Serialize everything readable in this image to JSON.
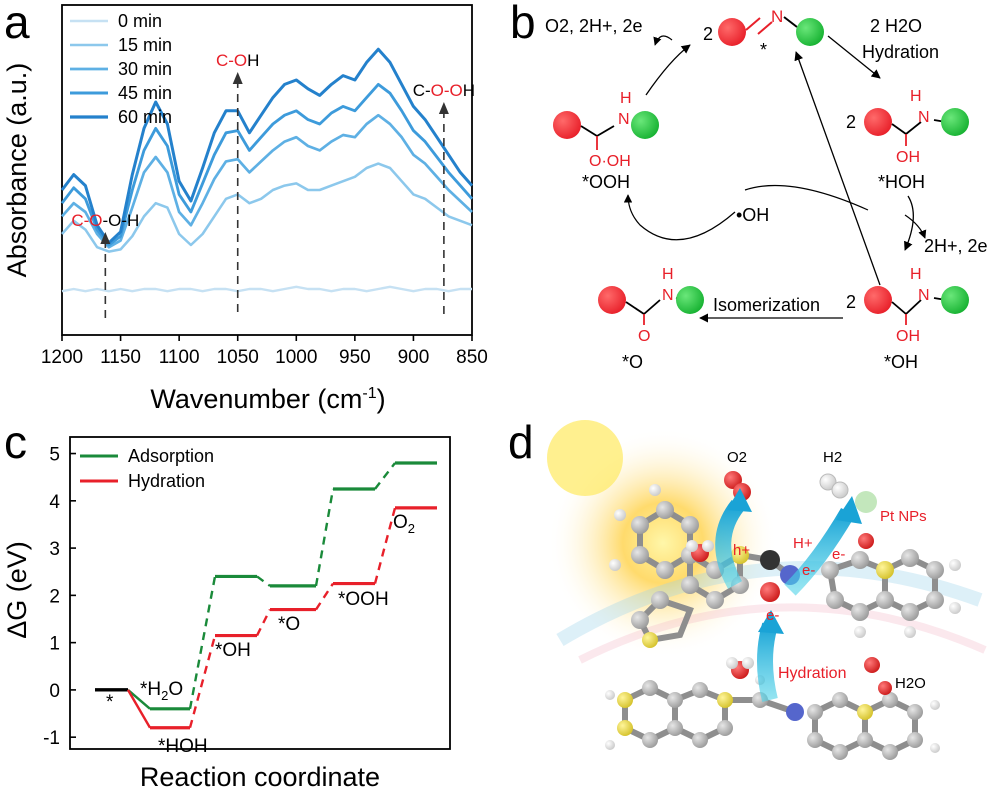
{
  "panels": {
    "a": "a",
    "b": "b",
    "c": "c",
    "d": "d"
  },
  "chart_data": [
    {
      "type": "line",
      "panel": "a",
      "xlabel": "Wavenumber (cm-1)",
      "xlabel_main": "Wavenumber (cm",
      "xlabel_sup": "-1",
      "xlabel_end": ")",
      "ylabel": "Absorbance (a.u.)",
      "xlim": [
        1200,
        850
      ],
      "x_reversed": true,
      "xticks": [
        1200,
        1150,
        1100,
        1050,
        1000,
        950,
        900,
        850
      ],
      "y_ticks_shown": false,
      "x": [
        1200,
        1190,
        1180,
        1170,
        1160,
        1150,
        1140,
        1130,
        1120,
        1110,
        1100,
        1090,
        1080,
        1070,
        1060,
        1050,
        1040,
        1030,
        1020,
        1010,
        1000,
        990,
        980,
        970,
        960,
        950,
        940,
        930,
        920,
        910,
        900,
        890,
        880,
        870,
        860,
        850
      ],
      "series": [
        {
          "name": "0 min",
          "color": "#c6e1f3",
          "values": [
            0.04,
            0.05,
            0.04,
            0.05,
            0.04,
            0.05,
            0.04,
            0.05,
            0.05,
            0.04,
            0.05,
            0.05,
            0.04,
            0.05,
            0.05,
            0.04,
            0.05,
            0.05,
            0.04,
            0.05,
            0.06,
            0.05,
            0.05,
            0.04,
            0.05,
            0.05,
            0.04,
            0.05,
            0.06,
            0.05,
            0.04,
            0.05,
            0.05,
            0.04,
            0.05,
            0.05
          ]
        },
        {
          "name": "15 min",
          "color": "#8cc8ec",
          "values": [
            0.3,
            0.36,
            0.32,
            0.24,
            0.22,
            0.23,
            0.29,
            0.38,
            0.44,
            0.42,
            0.3,
            0.25,
            0.3,
            0.38,
            0.46,
            0.48,
            0.44,
            0.46,
            0.5,
            0.52,
            0.53,
            0.5,
            0.5,
            0.52,
            0.54,
            0.56,
            0.6,
            0.62,
            0.6,
            0.54,
            0.48,
            0.46,
            0.42,
            0.38,
            0.36,
            0.34
          ]
        },
        {
          "name": "30 min",
          "color": "#5eb0e4",
          "values": [
            0.38,
            0.44,
            0.4,
            0.3,
            0.24,
            0.27,
            0.42,
            0.58,
            0.65,
            0.58,
            0.4,
            0.34,
            0.44,
            0.55,
            0.63,
            0.64,
            0.58,
            0.63,
            0.68,
            0.72,
            0.74,
            0.7,
            0.68,
            0.72,
            0.75,
            0.74,
            0.8,
            0.84,
            0.8,
            0.74,
            0.66,
            0.62,
            0.56,
            0.5,
            0.45,
            0.4
          ]
        },
        {
          "name": "45 min",
          "color": "#3d9bdb",
          "values": [
            0.44,
            0.51,
            0.46,
            0.32,
            0.25,
            0.29,
            0.5,
            0.68,
            0.78,
            0.7,
            0.48,
            0.4,
            0.53,
            0.66,
            0.76,
            0.77,
            0.68,
            0.74,
            0.8,
            0.84,
            0.86,
            0.82,
            0.8,
            0.85,
            0.88,
            0.86,
            0.92,
            0.98,
            0.94,
            0.86,
            0.77,
            0.72,
            0.65,
            0.58,
            0.52,
            0.46
          ]
        },
        {
          "name": "60 min",
          "color": "#2481cc",
          "values": [
            0.5,
            0.57,
            0.52,
            0.34,
            0.26,
            0.31,
            0.57,
            0.78,
            0.9,
            0.8,
            0.54,
            0.45,
            0.6,
            0.76,
            0.86,
            0.86,
            0.76,
            0.84,
            0.92,
            0.98,
            1.0,
            0.96,
            0.93,
            0.98,
            1.02,
            1.0,
            1.08,
            1.14,
            1.08,
            0.98,
            0.88,
            0.82,
            0.74,
            0.66,
            0.58,
            0.52
          ]
        }
      ],
      "annotations": [
        {
          "x": 1163,
          "text_red": "C-O",
          "text_black": "-O-H"
        },
        {
          "x": 1050,
          "text_red": "C-O",
          "text_black": "H"
        },
        {
          "x": 874,
          "text_black": "C-",
          "text_red": "O-O",
          "text_black2": "H"
        }
      ]
    },
    {
      "type": "line",
      "panel": "c",
      "xlabel": "Reaction coordinate",
      "ylabel": "ΔG (eV)",
      "ylim": [
        -1.25,
        5.35
      ],
      "yticks": [
        -1,
        0,
        1,
        2,
        3,
        4,
        5
      ],
      "series": [
        {
          "name": "Adsorption",
          "color": "#1a8a3a",
          "values": [
            0,
            -0.4,
            2.4,
            2.2,
            4.25,
            4.8
          ]
        },
        {
          "name": "Hydration",
          "color": "#e8202a",
          "values": [
            0,
            -0.8,
            1.15,
            1.7,
            2.25,
            3.85
          ]
        }
      ],
      "step_labels": [
        "*",
        "*H2O",
        "*HOH",
        "*OH",
        "*O",
        "*OOH",
        "O2"
      ]
    }
  ],
  "scheme_b": {
    "top_left": "O2, 2H+, 2e",
    "top_right_1": "2 H2O",
    "top_right_2": "Hydration",
    "coef": "2",
    "star": "*",
    "ooh": "*OOH",
    "hoh": "*HOH",
    "oh_radical": "•OH",
    "right_mid": "2H+, 2e",
    "isomerization": "Isomerization",
    "o": "*O",
    "oh": "*OH",
    "atom_h": "H",
    "atom_n": "N",
    "atom_o": "O",
    "atom_oh": "OH",
    "atom_ooh": "O·OH"
  },
  "scene_d": {
    "o2": "O2",
    "h2": "H2",
    "pt": "Pt NPs",
    "hplus": "h+",
    "hplus2": "H+",
    "e": "e-",
    "hydration": "Hydration",
    "h2o": "H2O"
  },
  "colors": {
    "red": "#e8202a",
    "green": "#1fbf3a",
    "blue": "#2481cc"
  }
}
